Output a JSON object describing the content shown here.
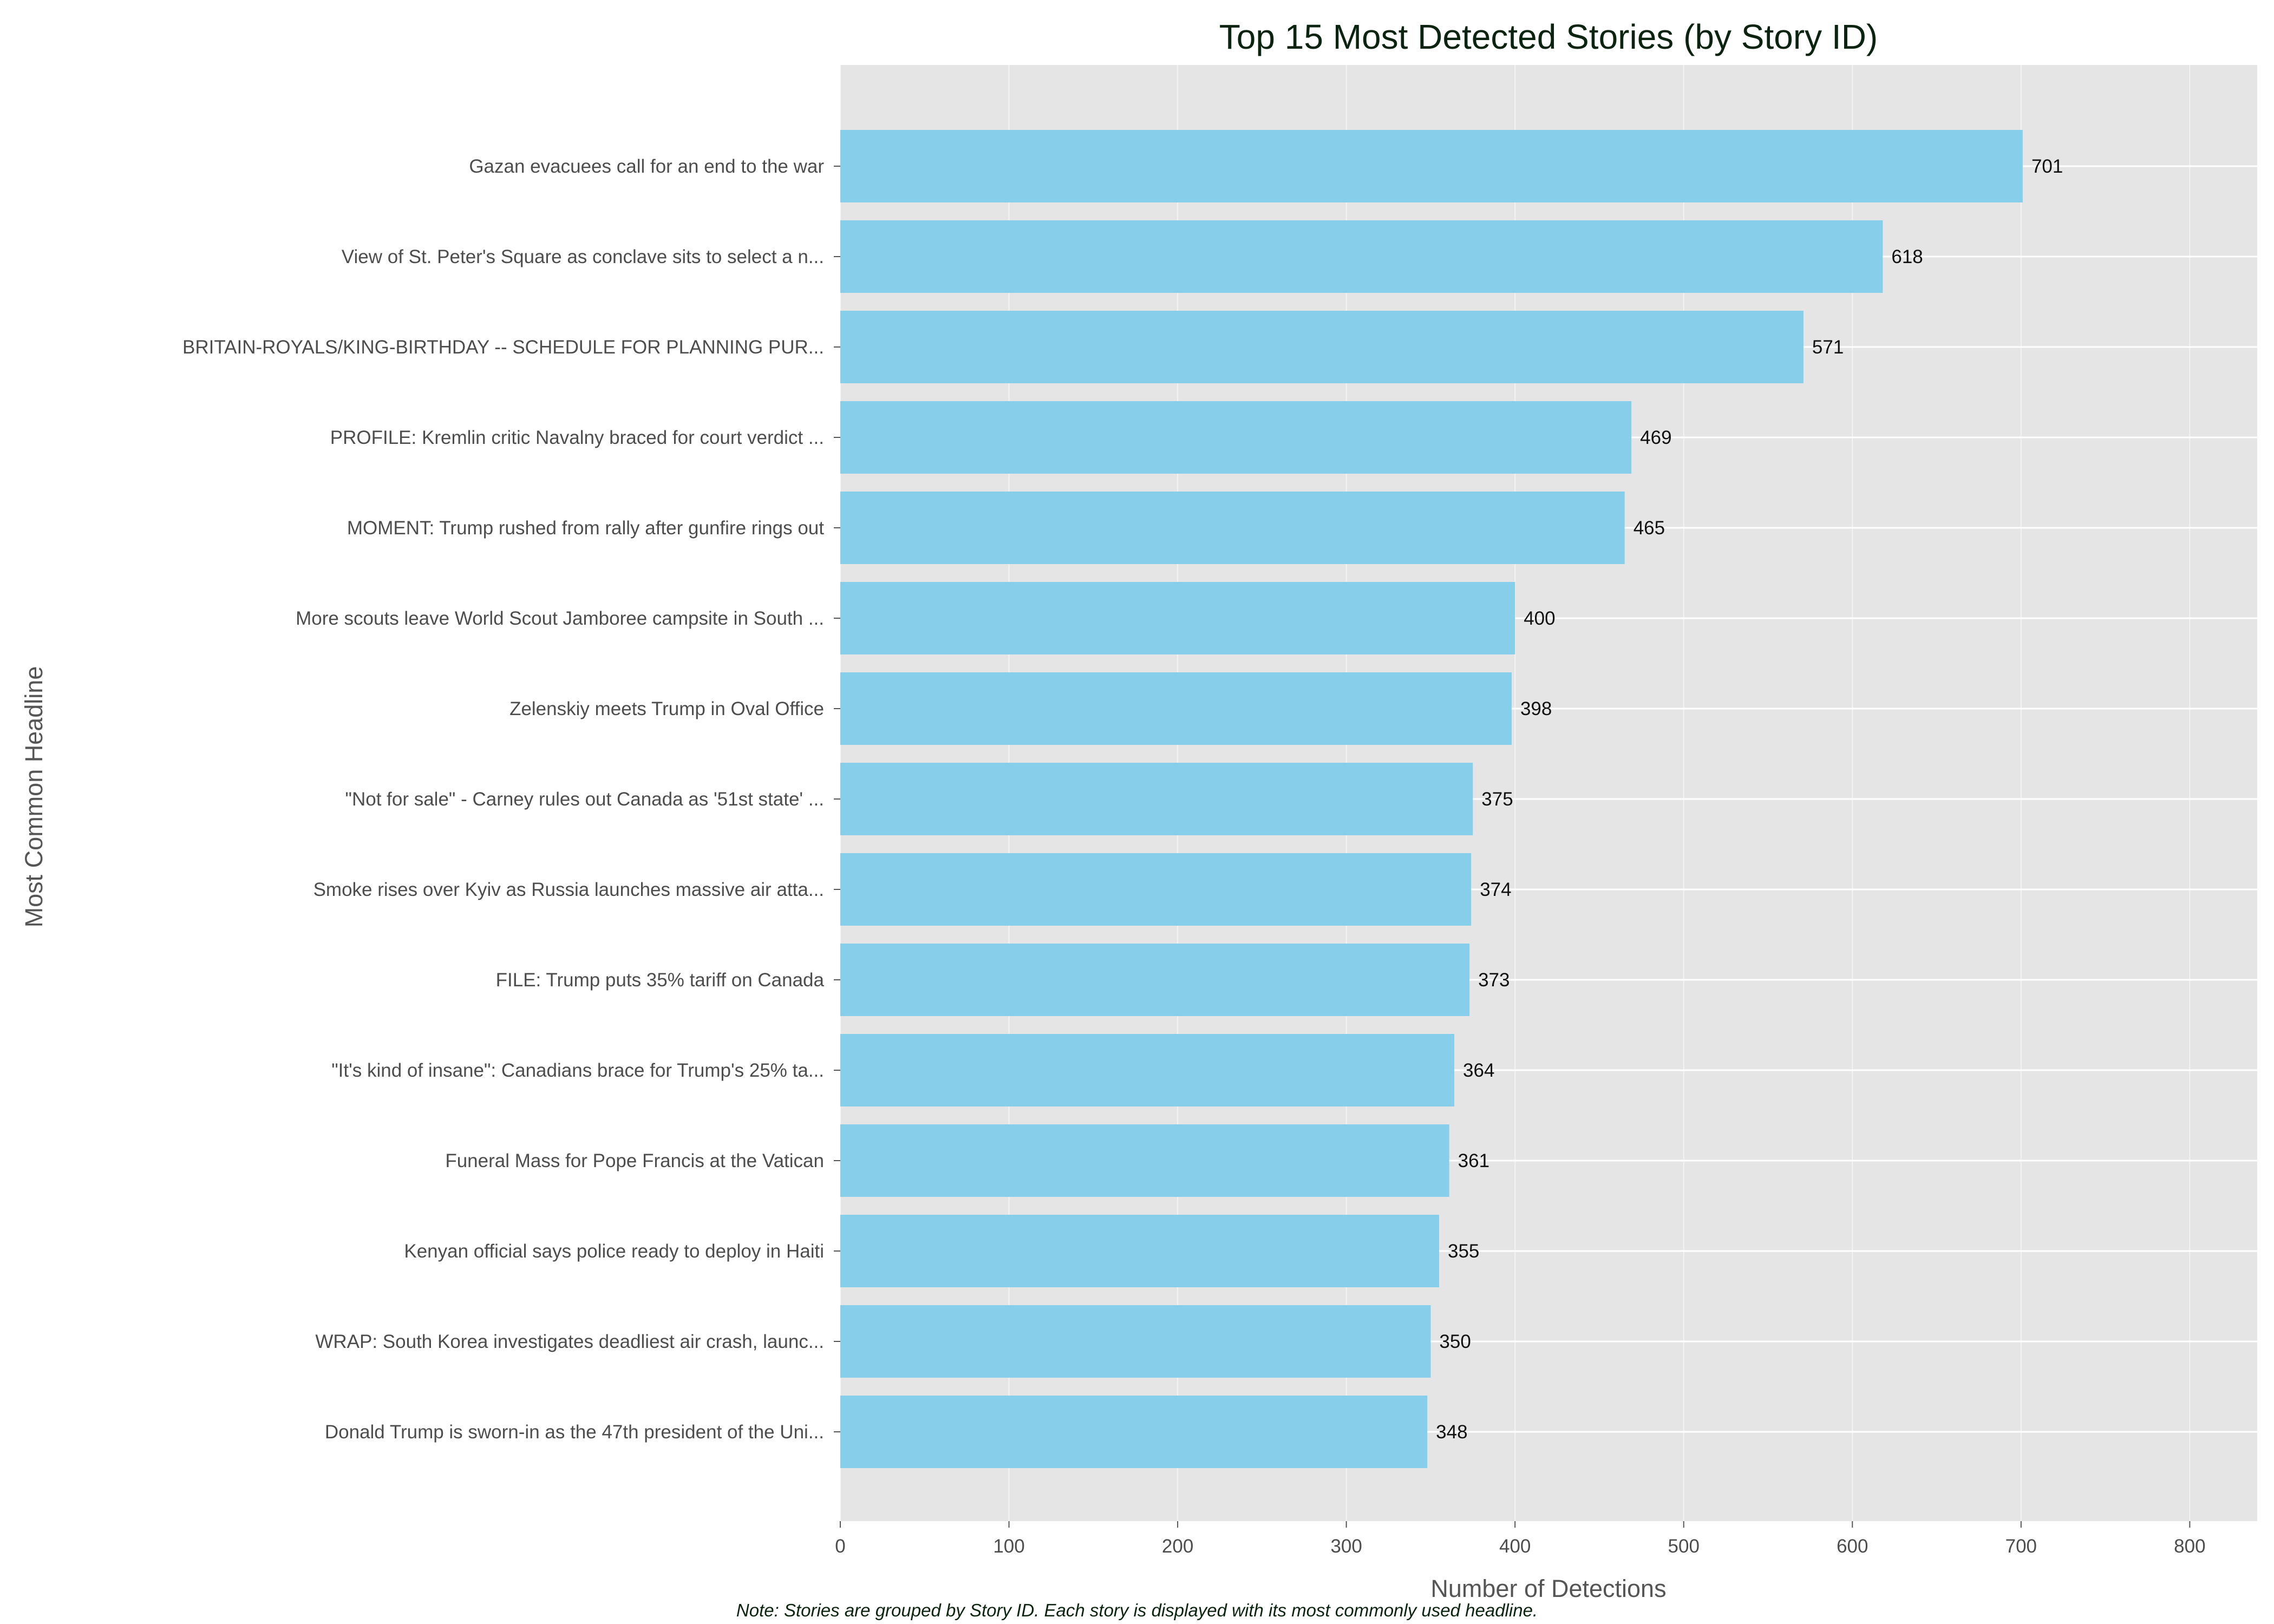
{
  "chart_data": {
    "type": "bar",
    "orientation": "horizontal",
    "title": "Top 15 Most Detected Stories (by Story ID)",
    "xlabel": "Number of Detections",
    "ylabel": "Most Common Headline",
    "xlim": [
      0,
      840
    ],
    "xticks": [
      0,
      100,
      200,
      300,
      400,
      500,
      600,
      700,
      800
    ],
    "grid": true,
    "bar_color": "#87CEEB",
    "background_color": "#E5E5E5",
    "grid_color": "#FFFFFF",
    "categories": [
      "Gazan evacuees call for an end to the war",
      "View of St. Peter's Square as conclave sits to select a n...",
      "BRITAIN-ROYALS/KING-BIRTHDAY -- SCHEDULE FOR PLANNING PUR...",
      "PROFILE: Kremlin critic Navalny braced for court verdict ...",
      "MOMENT: Trump rushed from rally after gunfire rings out",
      "More scouts leave World Scout Jamboree campsite in South ...",
      "Zelenskiy meets Trump in Oval Office",
      "\"Not for sale\" - Carney rules out Canada as '51st state' ...",
      "Smoke rises over Kyiv as Russia launches massive air atta...",
      "FILE: Trump puts 35% tariff on Canada",
      "\"It's kind of insane\": Canadians brace for Trump's 25% ta...",
      "Funeral Mass for Pope Francis at the Vatican",
      "Kenyan official says police ready to deploy in Haiti",
      "WRAP: South Korea investigates deadliest air crash, launc...",
      "Donald Trump is sworn-in as the 47th president of the Uni..."
    ],
    "values": [
      701,
      618,
      571,
      469,
      465,
      400,
      398,
      375,
      374,
      373,
      364,
      361,
      355,
      350,
      348
    ],
    "note": "Note: Stories are grouped by Story ID. Each story is displayed with its most commonly used headline."
  }
}
